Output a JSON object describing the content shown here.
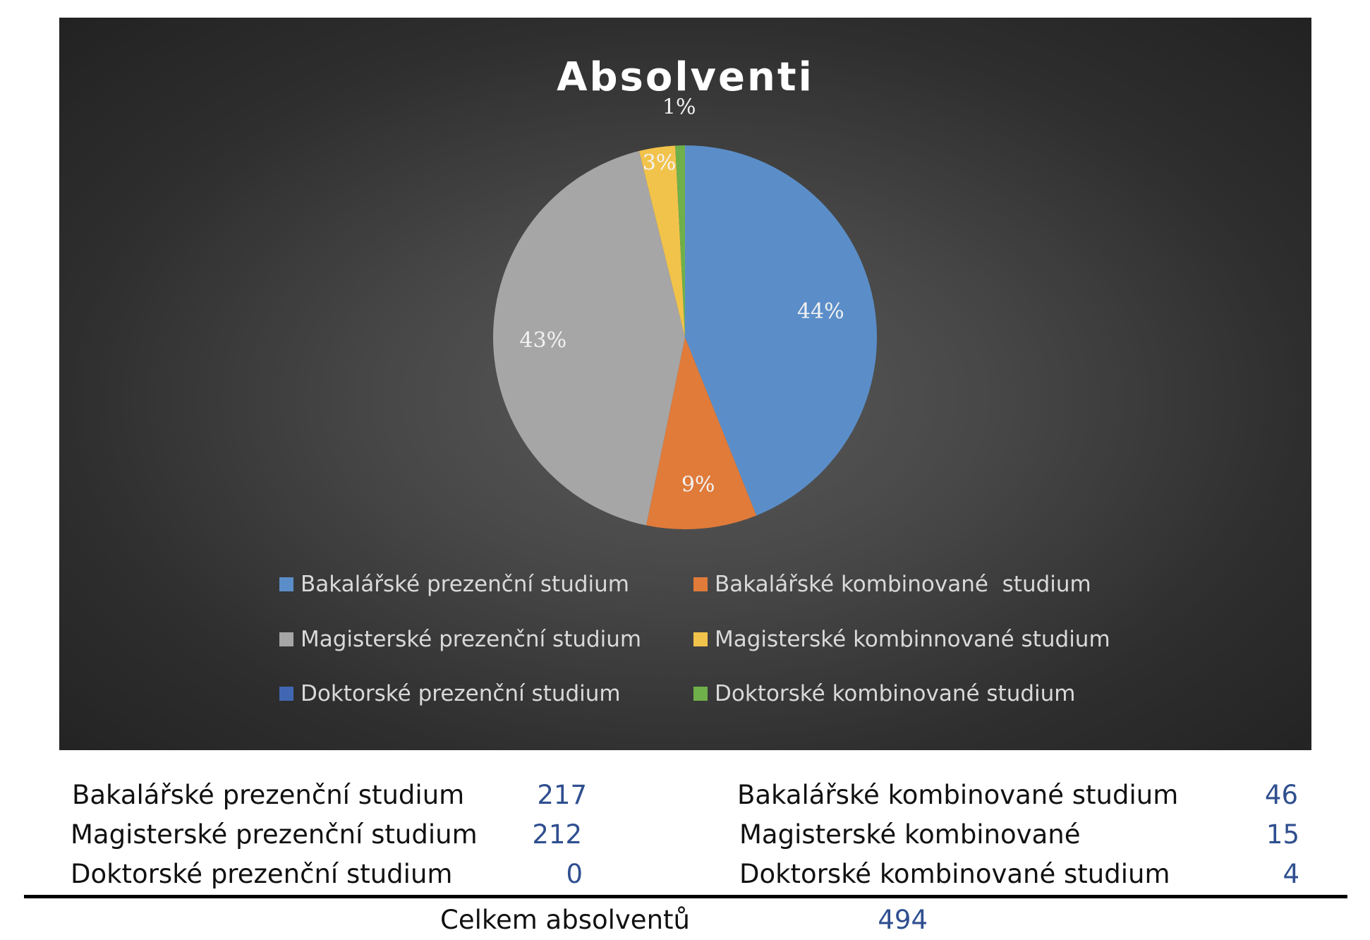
{
  "chart_data": {
    "type": "pie",
    "title": "Absolventi",
    "slices": [
      {
        "name": "Bakalářské prezenční studium",
        "value": 217,
        "label": "44%",
        "color": "#5b8ec9"
      },
      {
        "name": "Bakalářské kombinované  studium",
        "value": 46,
        "label": "9%",
        "color": "#e07b3a"
      },
      {
        "name": "Magisterské prezenční studium",
        "value": 212,
        "label": "43%",
        "color": "#a6a6a6"
      },
      {
        "name": "Magisterské kombinnované studium",
        "value": 15,
        "label": "3%",
        "color": "#f2c34b"
      },
      {
        "name": "Doktorské prezenční studium",
        "value": 0,
        "label": "",
        "color": "#4267b2"
      },
      {
        "name": "Doktorské kombinované studium",
        "value": 4,
        "label": "1%",
        "color": "#6fb04a"
      }
    ],
    "legend_position": "bottom"
  },
  "table": {
    "rows": [
      {
        "left_label": "Bakalářské prezenční studium",
        "left_value": "217",
        "right_label": "Bakalářské kombinované studium",
        "right_value": "46"
      },
      {
        "left_label": "Magisterské prezenční studium",
        "left_value": "212",
        "right_label": "Magisterské kombinované",
        "right_value": "15"
      },
      {
        "left_label": "Doktorské prezenční studium",
        "left_value": "0",
        "right_label": "Doktorské kombinované studium",
        "right_value": "4"
      }
    ],
    "total_label": "Celkem absolventů",
    "total_value": "494"
  }
}
